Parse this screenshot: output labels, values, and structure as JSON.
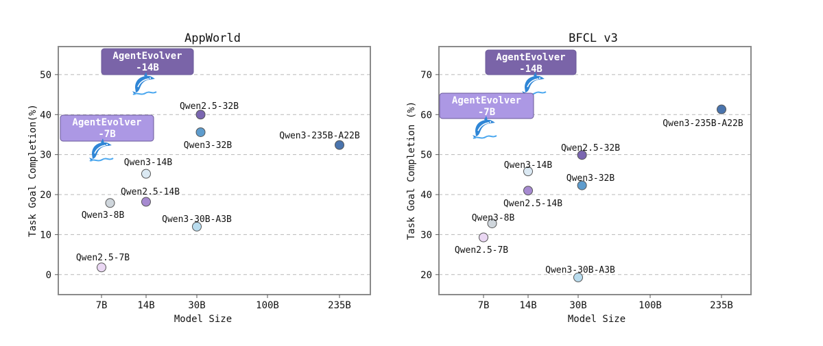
{
  "chart_data": [
    {
      "type": "scatter",
      "title": "AppWorld",
      "xlabel": "Model Size",
      "ylabel": "Task Goal Completion(%)",
      "x_ticks": [
        "7B",
        "14B",
        "30B",
        "100B",
        "235B"
      ],
      "ylim": [
        -5,
        57
      ],
      "y_ticks": [
        0,
        10,
        20,
        30,
        40,
        50
      ],
      "grid": true,
      "points": [
        {
          "name": "Qwen2.5-7B",
          "size_b": 7,
          "value": 1.8,
          "color": "#ead7f3"
        },
        {
          "name": "Qwen3-8B",
          "size_b": 8,
          "value": 17.9,
          "color": "#cfd6dc"
        },
        {
          "name": "Qwen3-14B",
          "size_b": 14,
          "value": 25.2,
          "color": "#dbe9f3"
        },
        {
          "name": "Qwen2.5-14B",
          "size_b": 14,
          "value": 18.2,
          "color": "#a68ad0"
        },
        {
          "name": "Qwen3-30B-A3B",
          "size_b": 30,
          "value": 12.0,
          "color": "#b9dcee"
        },
        {
          "name": "Qwen2.5-32B",
          "size_b": 32,
          "value": 40.0,
          "color": "#7a66b0"
        },
        {
          "name": "Qwen3-32B",
          "size_b": 32,
          "value": 35.6,
          "color": "#5e9ccd"
        },
        {
          "name": "Qwen3-235B-A22B",
          "size_b": 235,
          "value": 32.4,
          "color": "#4a74ad"
        }
      ],
      "highlights": [
        {
          "name": "AgentEvolver",
          "size": "-14B",
          "value": 48,
          "color": "#7a64a8"
        },
        {
          "name": "AgentEvolver",
          "size": "-7B",
          "value": 31,
          "color": "#ac98e4"
        }
      ]
    },
    {
      "type": "scatter",
      "title": "BFCL v3",
      "xlabel": "Model Size",
      "ylabel": "Task Goal Completion (%)",
      "x_ticks": [
        "7B",
        "14B",
        "30B",
        "100B",
        "235B"
      ],
      "ylim": [
        15,
        77
      ],
      "y_ticks": [
        20,
        30,
        40,
        50,
        60,
        70
      ],
      "grid": true,
      "points": [
        {
          "name": "Qwen2.5-7B",
          "size_b": 7,
          "value": 29.3,
          "color": "#ead7f3"
        },
        {
          "name": "Qwen3-8B",
          "size_b": 8,
          "value": 32.8,
          "color": "#cfd6dc"
        },
        {
          "name": "Qwen3-14B",
          "size_b": 14,
          "value": 45.8,
          "color": "#dbe9f3"
        },
        {
          "name": "Qwen2.5-14B",
          "size_b": 14,
          "value": 41.0,
          "color": "#a68ad0"
        },
        {
          "name": "Qwen3-30B-A3B",
          "size_b": 30,
          "value": 19.3,
          "color": "#b9dcee"
        },
        {
          "name": "Qwen2.5-32B",
          "size_b": 32,
          "value": 49.9,
          "color": "#7a66b0"
        },
        {
          "name": "Qwen3-32B",
          "size_b": 32,
          "value": 42.3,
          "color": "#5e9ccd"
        },
        {
          "name": "Qwen3-235B-A22B",
          "size_b": 235,
          "value": 61.3,
          "color": "#4a74ad"
        }
      ],
      "highlights": [
        {
          "name": "AgentEvolver",
          "size": "-14B",
          "value": 67.5,
          "color": "#7a64a8"
        },
        {
          "name": "AgentEvolver",
          "size": "-7B",
          "value": 56,
          "color": "#ac98e4"
        }
      ]
    }
  ]
}
